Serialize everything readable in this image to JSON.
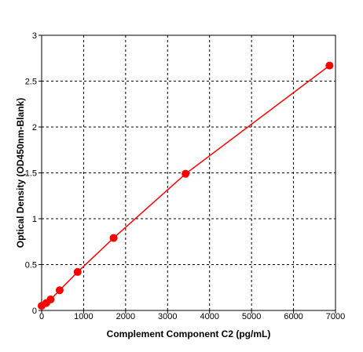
{
  "chart_data": {
    "type": "scatter",
    "title": "",
    "xlabel": "Complement Component C2 (pg/mL)",
    "ylabel": "Optical Density (OD450nm-Blank)",
    "xlim": [
      0,
      7000
    ],
    "ylim": [
      0,
      3
    ],
    "x_ticks": [
      0,
      1000,
      2000,
      3000,
      4000,
      5000,
      6000,
      7000
    ],
    "y_ticks": [
      0,
      0.5,
      1,
      1.5,
      2,
      2.5,
      3
    ],
    "x_tick_labels": [
      "0",
      "1000",
      "2000",
      "3000",
      "4000",
      "5000",
      "6000",
      "7000"
    ],
    "y_tick_labels": [
      "0",
      "0.5",
      "1",
      "1.5",
      "2",
      "2.5",
      "3"
    ],
    "grid": "dashed",
    "legend": "none",
    "series": [
      {
        "x": [
          0,
          107,
          214,
          429,
          857,
          1714,
          3428,
          6857
        ],
        "y": [
          0.05,
          0.08,
          0.12,
          0.22,
          0.42,
          0.79,
          1.49,
          2.67
        ],
        "color": "#ff0000",
        "marker": "circle",
        "line": "fitted curve"
      }
    ]
  }
}
